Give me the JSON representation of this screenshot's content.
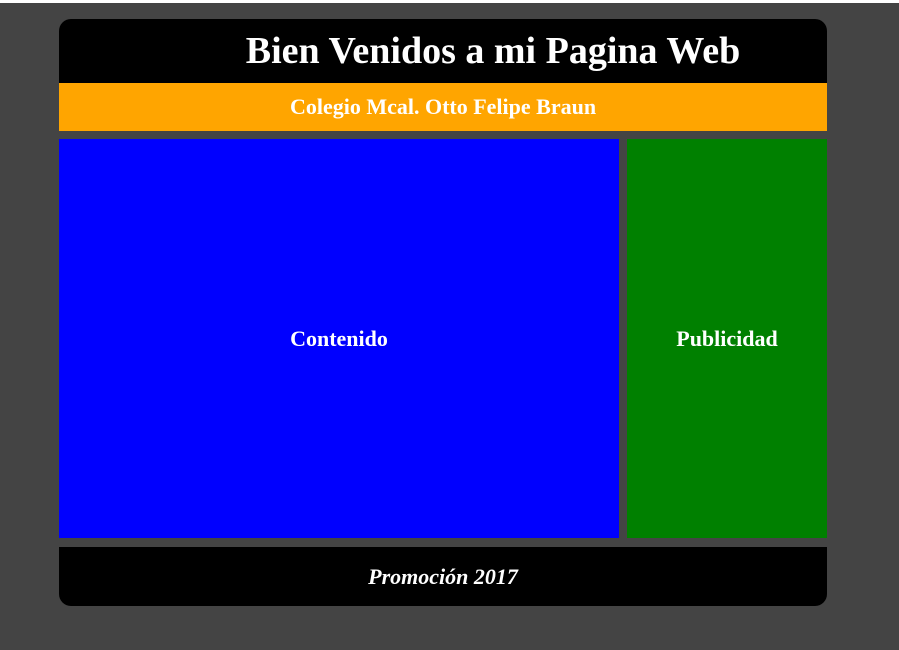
{
  "header": {
    "title": "Bien Venidos a mi Pagina Web"
  },
  "subheader": {
    "school": "Colegio Mcal. Otto Felipe Braun"
  },
  "main": {
    "content_label": "Contenido"
  },
  "aside": {
    "ads_label": "Publicidad"
  },
  "footer": {
    "text": "Promoción 2017"
  },
  "colors": {
    "background": "#444444",
    "header": "#000000",
    "subheader": "#ffa500",
    "content": "#0000ff",
    "ads": "#008000",
    "footer": "#000000",
    "text": "#ffffff"
  }
}
